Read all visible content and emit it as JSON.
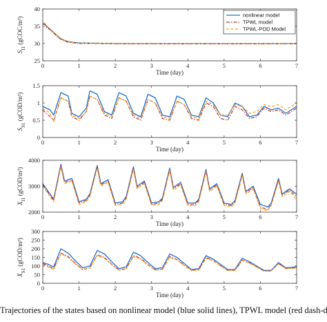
{
  "caption": "Trajectories of the states based on nonlinear model (blue solid lines), TPWL model (red dash-dot lines) and TPWL-POD model",
  "legend": [
    "nonlinear model",
    "TPWL model",
    "TPWL-POD Model"
  ],
  "colors": {
    "nonlinear": "#1f6fd1",
    "tpwl": "#c8321e",
    "tpwlpod": "#f0a21e"
  },
  "chart_data": [
    {
      "type": "line",
      "ylabel": "S_I1 (gCOC/m³)",
      "xlabel": "Time (day)",
      "xlim": [
        0,
        7
      ],
      "ylim": [
        25,
        40
      ],
      "xticks": [
        0,
        1,
        2,
        3,
        4,
        5,
        6,
        7
      ],
      "yticks": [
        25,
        30,
        35,
        40
      ],
      "legend_position": "top-right",
      "series": [
        {
          "name": "nonlinear model",
          "x": [
            0,
            0.05,
            0.1,
            0.2,
            0.3,
            0.4,
            0.5,
            0.6,
            0.7,
            0.8,
            0.9,
            1,
            1.5,
            2,
            3,
            4,
            5,
            6,
            7
          ],
          "y": [
            36,
            35.8,
            35,
            34.2,
            33.2,
            32.2,
            31.4,
            30.9,
            30.6,
            30.4,
            30.3,
            30.2,
            30.1,
            30,
            30,
            30,
            30,
            30,
            30
          ]
        },
        {
          "name": "TPWL model",
          "x": [
            0,
            0.05,
            0.1,
            0.2,
            0.3,
            0.4,
            0.5,
            0.6,
            0.7,
            0.8,
            0.9,
            1,
            1.5,
            2,
            3,
            4,
            5,
            6,
            7
          ],
          "y": [
            35.5,
            35.6,
            34.8,
            34,
            33,
            32,
            31.2,
            30.7,
            30.4,
            30.2,
            30.1,
            30,
            30,
            29.9,
            29.9,
            29.9,
            29.9,
            29.9,
            29.9
          ]
        },
        {
          "name": "TPWL-POD Model",
          "x": [
            0,
            0.05,
            0.1,
            0.2,
            0.3,
            0.4,
            0.5,
            0.6,
            0.7,
            0.8,
            0.9,
            1,
            1.5,
            2,
            3,
            4,
            5,
            6,
            7
          ],
          "y": [
            35.8,
            35.9,
            35.2,
            34.3,
            33.3,
            32.3,
            31.5,
            30.8,
            30.5,
            30.3,
            30.2,
            30.1,
            30.1,
            30,
            30,
            30,
            30,
            30,
            30
          ]
        }
      ]
    },
    {
      "type": "line",
      "ylabel": "S_S1 (gCOD/m³)",
      "xlabel": "Time (day)",
      "xlim": [
        0,
        7
      ],
      "ylim": [
        0,
        1.5
      ],
      "xticks": [
        0,
        1,
        2,
        3,
        4,
        5,
        6,
        7
      ],
      "yticks": [
        0,
        0.5,
        1,
        1.5
      ],
      "series": [
        {
          "name": "nonlinear model",
          "x": [
            0,
            0.2,
            0.3,
            0.5,
            0.7,
            0.8,
            1,
            1.2,
            1.3,
            1.5,
            1.7,
            1.9,
            2.1,
            2.3,
            2.5,
            2.7,
            2.9,
            3.1,
            3.3,
            3.5,
            3.7,
            3.9,
            4.1,
            4.3,
            4.5,
            4.7,
            4.9,
            5.1,
            5.3,
            5.5,
            5.7,
            5.9,
            6.1,
            6.3,
            6.5,
            6.7,
            7
          ],
          "y": [
            0.9,
            0.8,
            0.65,
            1.3,
            1.2,
            0.7,
            0.6,
            0.85,
            1.35,
            1.25,
            0.75,
            0.65,
            1.3,
            1.2,
            0.7,
            0.6,
            1.25,
            1.15,
            0.65,
            0.6,
            1.2,
            1.1,
            0.65,
            0.6,
            1.15,
            1.0,
            0.65,
            0.6,
            1.0,
            0.9,
            0.6,
            0.65,
            0.9,
            0.8,
            0.85,
            0.7,
            0.9
          ]
        },
        {
          "name": "TPWL model",
          "x": [
            0,
            0.2,
            0.3,
            0.5,
            0.7,
            0.8,
            1,
            1.2,
            1.3,
            1.5,
            1.7,
            1.9,
            2.1,
            2.3,
            2.5,
            2.7,
            2.9,
            3.1,
            3.3,
            3.5,
            3.7,
            3.9,
            4.1,
            4.3,
            4.5,
            4.7,
            4.9,
            5.1,
            5.3,
            5.5,
            5.7,
            5.9,
            6.1,
            6.3,
            6.5,
            6.7,
            7
          ],
          "y": [
            0.8,
            0.6,
            0.5,
            1.15,
            1.05,
            0.6,
            0.5,
            0.75,
            1.2,
            1.1,
            0.65,
            0.55,
            1.15,
            1.05,
            0.6,
            0.5,
            1.1,
            1.0,
            0.55,
            0.5,
            1.05,
            0.95,
            0.55,
            0.5,
            1.0,
            0.9,
            0.55,
            0.5,
            0.9,
            0.8,
            0.55,
            0.6,
            0.85,
            0.75,
            0.8,
            0.65,
            0.85
          ]
        },
        {
          "name": "TPWL-POD Model",
          "x": [
            0,
            0.2,
            0.3,
            0.5,
            0.7,
            0.8,
            1,
            1.2,
            1.3,
            1.5,
            1.7,
            1.9,
            2.1,
            2.3,
            2.5,
            2.7,
            2.9,
            3.1,
            3.3,
            3.5,
            3.7,
            3.9,
            4.1,
            4.3,
            4.5,
            4.7,
            4.9,
            5.1,
            5.3,
            5.5,
            5.7,
            5.9,
            6.1,
            6.3,
            6.5,
            6.7,
            7
          ],
          "y": [
            0.85,
            0.7,
            0.45,
            1.15,
            1.05,
            0.65,
            0.55,
            0.75,
            1.2,
            1.1,
            0.7,
            0.6,
            1.15,
            1.05,
            0.65,
            0.55,
            1.1,
            1.0,
            0.6,
            0.55,
            1.05,
            0.95,
            0.6,
            0.55,
            1.05,
            0.95,
            0.65,
            0.65,
            0.95,
            0.9,
            0.7,
            0.75,
            0.95,
            0.9,
            0.95,
            0.8,
            1.0
          ]
        }
      ]
    },
    {
      "type": "line",
      "ylabel": "X_I1 (gCOD/m³)",
      "xlabel": "Time (day)",
      "xlim": [
        0,
        7
      ],
      "ylim": [
        2000,
        4000
      ],
      "xticks": [
        0,
        1,
        2,
        3,
        4,
        5,
        6,
        7
      ],
      "yticks": [
        2000,
        3000,
        4000
      ],
      "series": [
        {
          "name": "nonlinear model",
          "x": [
            0,
            0.2,
            0.3,
            0.5,
            0.6,
            0.8,
            1,
            1.2,
            1.3,
            1.5,
            1.6,
            1.8,
            2,
            2.2,
            2.3,
            2.5,
            2.6,
            2.8,
            3,
            3.2,
            3.3,
            3.5,
            3.6,
            3.8,
            4,
            4.2,
            4.3,
            4.5,
            4.6,
            4.8,
            5,
            5.2,
            5.3,
            5.5,
            5.6,
            5.8,
            6,
            6.2,
            6.3,
            6.5,
            6.6,
            6.8,
            7
          ],
          "y": [
            3100,
            2700,
            2500,
            3850,
            3200,
            3300,
            2400,
            2500,
            2700,
            3800,
            3100,
            3250,
            2350,
            2400,
            2600,
            3750,
            3000,
            3200,
            2350,
            2400,
            2550,
            3700,
            2950,
            3150,
            2350,
            2350,
            2500,
            3650,
            2900,
            3100,
            2350,
            2300,
            2450,
            3500,
            2800,
            3000,
            2300,
            2200,
            2350,
            3300,
            2700,
            2900,
            2700
          ]
        },
        {
          "name": "TPWL model",
          "x": [
            0,
            0.2,
            0.3,
            0.5,
            0.6,
            0.8,
            1,
            1.2,
            1.3,
            1.5,
            1.6,
            1.8,
            2,
            2.2,
            2.3,
            2.5,
            2.6,
            2.8,
            3,
            3.2,
            3.3,
            3.5,
            3.6,
            3.8,
            4,
            4.2,
            4.3,
            4.5,
            4.6,
            4.8,
            5,
            5.2,
            5.3,
            5.5,
            5.6,
            5.8,
            6,
            6.2,
            6.3,
            6.5,
            6.6,
            6.8,
            7
          ],
          "y": [
            3050,
            2650,
            2450,
            3800,
            3150,
            3250,
            2350,
            2450,
            2650,
            3750,
            3050,
            3200,
            2300,
            2350,
            2550,
            3700,
            2950,
            3150,
            2300,
            2350,
            2500,
            3650,
            2900,
            3100,
            2300,
            2300,
            2450,
            3600,
            2850,
            3050,
            2300,
            2250,
            2400,
            3450,
            2750,
            2950,
            2200,
            2100,
            2300,
            3250,
            2650,
            2850,
            2600
          ]
        },
        {
          "name": "TPWL-POD Model",
          "x": [
            0,
            0.2,
            0.3,
            0.5,
            0.6,
            0.8,
            1,
            1.2,
            1.3,
            1.5,
            1.6,
            1.8,
            2,
            2.2,
            2.3,
            2.5,
            2.6,
            2.8,
            3,
            3.2,
            3.3,
            3.5,
            3.6,
            3.8,
            4,
            4.2,
            4.3,
            4.5,
            4.6,
            4.8,
            5,
            5.2,
            5.3,
            5.5,
            5.6,
            5.8,
            6,
            6.2,
            6.3,
            6.5,
            6.6,
            6.8,
            7
          ],
          "y": [
            3000,
            2600,
            2400,
            3750,
            3100,
            3200,
            2300,
            2400,
            2600,
            3700,
            3000,
            3150,
            2250,
            2300,
            2500,
            3650,
            2900,
            3100,
            2250,
            2300,
            2450,
            3600,
            2850,
            3050,
            2250,
            2250,
            2400,
            3550,
            2800,
            3000,
            2250,
            2200,
            2350,
            3400,
            2700,
            2900,
            2150,
            2050,
            2250,
            3200,
            2600,
            2800,
            2500
          ]
        }
      ]
    },
    {
      "type": "line",
      "ylabel": "X_S1 (gCOD/m³)",
      "xlabel": "Time (day)",
      "xlim": [
        0,
        7
      ],
      "ylim": [
        0,
        300
      ],
      "xticks": [
        0,
        1,
        2,
        3,
        4,
        5,
        6,
        7
      ],
      "yticks": [
        0,
        50,
        100,
        150,
        200,
        250,
        300
      ],
      "series": [
        {
          "name": "nonlinear model",
          "x": [
            0,
            0.15,
            0.3,
            0.5,
            0.7,
            0.9,
            1.1,
            1.3,
            1.5,
            1.7,
            1.9,
            2.1,
            2.3,
            2.5,
            2.7,
            2.9,
            3.1,
            3.3,
            3.5,
            3.7,
            3.9,
            4.1,
            4.3,
            4.5,
            4.7,
            4.9,
            5.1,
            5.3,
            5.5,
            5.7,
            5.9,
            6.1,
            6.3,
            6.5,
            6.7,
            7
          ],
          "y": [
            120,
            110,
            95,
            200,
            175,
            130,
            90,
            100,
            190,
            170,
            125,
            85,
            95,
            180,
            160,
            120,
            85,
            90,
            170,
            150,
            115,
            80,
            85,
            160,
            140,
            110,
            80,
            80,
            145,
            125,
            100,
            75,
            75,
            120,
            90,
            95
          ]
        },
        {
          "name": "TPWL model",
          "x": [
            0,
            0.15,
            0.3,
            0.5,
            0.7,
            0.9,
            1.1,
            1.3,
            1.5,
            1.7,
            1.9,
            2.1,
            2.3,
            2.5,
            2.7,
            2.9,
            3.1,
            3.3,
            3.5,
            3.7,
            3.9,
            4.1,
            4.3,
            4.5,
            4.7,
            4.9,
            5.1,
            5.3,
            5.5,
            5.7,
            5.9,
            6.1,
            6.3,
            6.5,
            6.7,
            7
          ],
          "y": [
            115,
            100,
            85,
            175,
            155,
            115,
            80,
            90,
            165,
            150,
            110,
            78,
            85,
            160,
            145,
            108,
            78,
            82,
            155,
            138,
            105,
            75,
            78,
            150,
            132,
            102,
            75,
            75,
            135,
            118,
            95,
            70,
            72,
            115,
            85,
            90
          ]
        },
        {
          "name": "TPWL-POD Model",
          "x": [
            0,
            0.15,
            0.3,
            0.5,
            0.7,
            0.9,
            1.1,
            1.3,
            1.5,
            1.7,
            1.9,
            2.1,
            2.3,
            2.5,
            2.7,
            2.9,
            3.1,
            3.3,
            3.5,
            3.7,
            3.9,
            4.1,
            4.3,
            4.5,
            4.7,
            4.9,
            5.1,
            5.3,
            5.5,
            5.7,
            5.9,
            6.1,
            6.3,
            6.5,
            6.7,
            7
          ],
          "y": [
            110,
            95,
            80,
            170,
            150,
            112,
            78,
            88,
            160,
            145,
            108,
            76,
            82,
            155,
            140,
            105,
            76,
            80,
            150,
            135,
            102,
            74,
            76,
            145,
            130,
            100,
            74,
            74,
            132,
            116,
            94,
            70,
            72,
            112,
            84,
            88
          ]
        }
      ]
    }
  ]
}
